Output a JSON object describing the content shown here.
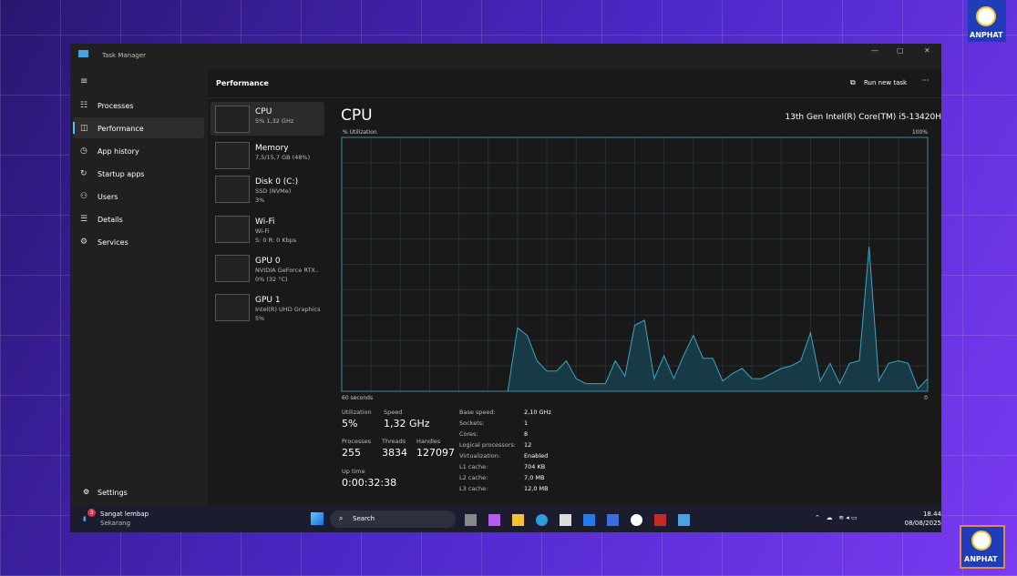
{
  "window": {
    "title": "Task Manager"
  },
  "nav": {
    "items": [
      "Processes",
      "Performance",
      "App history",
      "Startup apps",
      "Users",
      "Details",
      "Services"
    ],
    "settings": "Settings"
  },
  "header": {
    "title": "Performance",
    "run_new_task": "Run new task"
  },
  "devices": [
    {
      "name": "CPU",
      "lines": [
        "5% 1,32 GHz"
      ]
    },
    {
      "name": "Memory",
      "lines": [
        "7,5/15,7 GB (48%)"
      ]
    },
    {
      "name": "Disk 0 (C:)",
      "lines": [
        "SSD (NVMe)",
        "3%"
      ]
    },
    {
      "name": "Wi-Fi",
      "lines": [
        "Wi-Fi",
        "S: 0 R: 0 Kbps"
      ]
    },
    {
      "name": "GPU 0",
      "lines": [
        "NVIDIA GeForce RTX..",
        "0% (32 °C)"
      ]
    },
    {
      "name": "GPU 1",
      "lines": [
        "Intel(R) UHD Graphics",
        "5%"
      ]
    }
  ],
  "cpu": {
    "title": "CPU",
    "model": "13th Gen Intel(R) Core(TM) i5-13420H",
    "y_label": "% Utilization",
    "y_max_label": "100%",
    "x_left_label": "60 seconds",
    "x_right_label": "0",
    "ylim": [
      0,
      100
    ],
    "utilization": [
      0,
      0,
      0,
      0,
      0,
      0,
      0,
      0,
      0,
      0,
      0,
      0,
      0,
      0,
      0,
      0,
      0,
      0,
      25,
      22,
      12,
      8,
      8,
      12,
      5,
      3,
      3,
      3,
      12,
      6,
      26,
      28,
      5,
      14,
      5,
      14,
      22,
      13,
      13,
      4,
      7,
      9,
      5,
      5,
      7,
      9,
      10,
      12,
      23,
      4,
      11,
      3,
      11,
      12,
      57,
      4,
      11,
      12,
      11,
      1,
      5
    ]
  },
  "stats": [
    {
      "label": "Utilization",
      "value": "5%"
    },
    {
      "label": "Speed",
      "value": "1,32 GHz"
    },
    {
      "label": "Processes",
      "value": "255"
    },
    {
      "label": "Threads",
      "value": "3834"
    },
    {
      "label": "Handles",
      "value": "127097"
    },
    {
      "label": "Up time",
      "value": "0:00:32:38"
    }
  ],
  "specs": [
    {
      "label": "Base speed:",
      "value": "2,10 GHz"
    },
    {
      "label": "Sockets:",
      "value": "1"
    },
    {
      "label": "Cores:",
      "value": "8"
    },
    {
      "label": "Logical processors:",
      "value": "12"
    },
    {
      "label": "Virtualization:",
      "value": "Enabled"
    },
    {
      "label": "L1 cache:",
      "value": "704 KB"
    },
    {
      "label": "L2 cache:",
      "value": "7,0 MB"
    },
    {
      "label": "L3 cache:",
      "value": "12,0 MB"
    }
  ],
  "taskbar": {
    "badge": "3",
    "weather": "Sangat lembap",
    "weather_sub": "Sekarang",
    "search": "Search",
    "time": "18.44",
    "date": "08/08/2025"
  },
  "watermark": "ANPHAT"
}
